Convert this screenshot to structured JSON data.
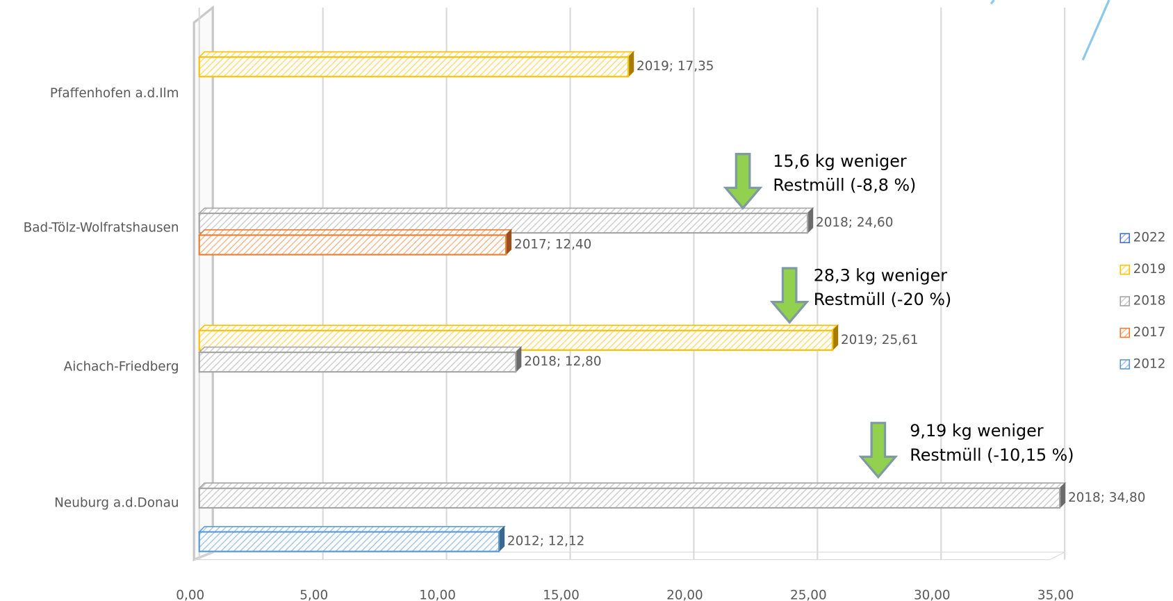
{
  "chart_data": {
    "type": "bar",
    "orientation": "horizontal",
    "categories": [
      "Pfaffenhofen a.d.Ilm",
      "Bad-Tölz-Wolfratshausen",
      "Aichach-Friedberg",
      "Neuburg a.d.Donau"
    ],
    "series": [
      {
        "name": "2022",
        "color": "#4472c4",
        "values": [
          null,
          null,
          null,
          null
        ],
        "value_labels": [
          null,
          null,
          null,
          null
        ]
      },
      {
        "name": "2019",
        "color": "#ffc000",
        "values": [
          17.35,
          null,
          25.61,
          null
        ],
        "value_labels": [
          "2019; 17,35",
          null,
          "2019; 25,61",
          null
        ]
      },
      {
        "name": "2018",
        "color": "#a5a5a5",
        "values": [
          null,
          24.6,
          12.8,
          34.8
        ],
        "value_labels": [
          null,
          "2018; 24,60",
          "2018; 12,80",
          "2018; 34,80"
        ]
      },
      {
        "name": "2017",
        "color": "#ed7d31",
        "values": [
          null,
          12.4,
          null,
          null
        ],
        "value_labels": [
          null,
          "2017; 12,40",
          null,
          null
        ]
      },
      {
        "name": "2012",
        "color": "#5b9bd5",
        "values": [
          null,
          null,
          null,
          12.12
        ],
        "value_labels": [
          null,
          null,
          null,
          "2012; 12,12"
        ]
      }
    ],
    "xlim": [
      0,
      35
    ],
    "xticks": [
      {
        "value": 0,
        "label": "0,00"
      },
      {
        "value": 5,
        "label": "5,00"
      },
      {
        "value": 10,
        "label": "10,00"
      },
      {
        "value": 15,
        "label": "15,00"
      },
      {
        "value": 20,
        "label": "20,00"
      },
      {
        "value": 25,
        "label": "25,00"
      },
      {
        "value": 30,
        "label": "30,00"
      },
      {
        "value": 35,
        "label": "35,00"
      }
    ],
    "grid": true,
    "legend": "right",
    "annotations": [
      {
        "lines": [
          "15,6 kg weniger",
          "Restmüll (-8,8 %)"
        ]
      },
      {
        "lines": [
          "28,3 kg weniger",
          "Restmüll (-20 %)"
        ]
      },
      {
        "lines": [
          "9,19 kg weniger",
          "Restmüll (-10,15 %)"
        ]
      }
    ]
  }
}
